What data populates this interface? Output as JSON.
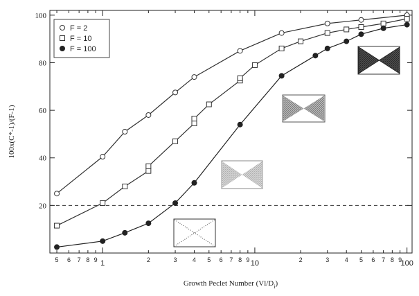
{
  "chart_data": {
    "type": "line",
    "ylabel": "100x(C*-1)/(F-1)",
    "xlabel": [
      "Growth Peclet Number (Vl/D",
      "i",
      ")"
    ],
    "xscale": "log",
    "xlim": [
      0.45,
      108
    ],
    "ylim": [
      0,
      102
    ],
    "xticks": [
      {
        "value": 0.5,
        "label": "5"
      },
      {
        "value": 0.6,
        "label": "6"
      },
      {
        "value": 0.7,
        "label": "7"
      },
      {
        "value": 0.8,
        "label": "8"
      },
      {
        "value": 0.9,
        "label": "9"
      },
      1,
      2,
      3,
      4,
      5,
      6,
      7,
      8,
      9,
      10,
      {
        "value": 20,
        "label": "2"
      },
      {
        "value": 30,
        "label": "3"
      },
      {
        "value": 40,
        "label": "4"
      },
      {
        "value": 50,
        "label": "5"
      },
      {
        "value": 60,
        "label": "6"
      },
      {
        "value": 70,
        "label": "7"
      },
      {
        "value": 80,
        "label": "8"
      },
      {
        "value": 90,
        "label": "9"
      },
      100
    ],
    "yticks": [
      20,
      40,
      60,
      80,
      100
    ],
    "reference_line": {
      "value": 20,
      "style": "dashed"
    },
    "legend": "upper left",
    "series": [
      {
        "name": "F = 2",
        "color": "#333333",
        "marker": "circle-open",
        "x": [
          0.5,
          1,
          1.4,
          2,
          3,
          4,
          8,
          15,
          30,
          50,
          100
        ],
        "values": [
          25,
          40.5,
          51,
          58,
          67.5,
          74,
          85,
          92.5,
          96.5,
          98,
          100
        ]
      },
      {
        "name": "F = 10",
        "color": "#333333",
        "marker": "square-open",
        "x": [
          0.5,
          1,
          1.4,
          2,
          2,
          3,
          4,
          4,
          5,
          8,
          8,
          10,
          15,
          20,
          30,
          40,
          50,
          70,
          100
        ],
        "values": [
          11.5,
          21,
          28,
          34.5,
          36.5,
          47,
          54.5,
          56.5,
          62.5,
          72.5,
          73.5,
          79,
          86,
          89,
          92.5,
          94,
          95,
          96.5,
          98.5
        ]
      },
      {
        "name": "F = 100",
        "color": "#222222",
        "marker": "circle-filled",
        "x": [
          0.5,
          1,
          1.4,
          2,
          3,
          4,
          8,
          15,
          25,
          30,
          40,
          50,
          70,
          100
        ],
        "values": [
          2.5,
          5,
          8.5,
          12.5,
          21,
          29.5,
          54,
          74.5,
          83,
          86,
          89,
          92,
          94.5,
          96
        ]
      }
    ]
  }
}
